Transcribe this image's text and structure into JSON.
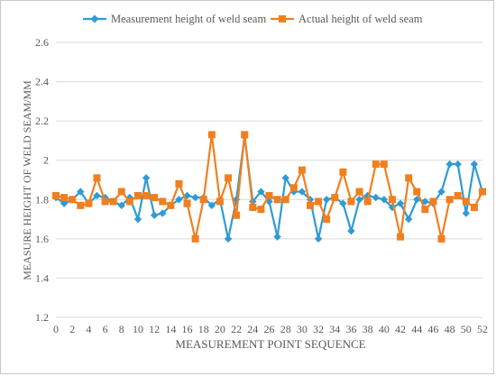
{
  "chart_data": {
    "type": "line",
    "title": "",
    "xlabel": "MEASUREMENT POINT SEQUENCE",
    "ylabel": "MEASURE HEIGHT OF WELD SEAM/MM",
    "ylim": [
      1.2,
      2.6
    ],
    "yticks": [
      "1.2",
      "1.4",
      "1.6",
      "1.8",
      "2",
      "2.2",
      "2.4",
      "2.6"
    ],
    "ytick_values": [
      1.2,
      1.4,
      1.6,
      1.8,
      2.0,
      2.2,
      2.4,
      2.6
    ],
    "xticks": [
      0,
      2,
      4,
      6,
      8,
      10,
      12,
      14,
      16,
      18,
      20,
      22,
      24,
      26,
      28,
      30,
      32,
      34,
      36,
      38,
      40,
      42,
      44,
      46,
      48,
      50,
      52
    ],
    "x": [
      0,
      1,
      2,
      3,
      4,
      5,
      6,
      7,
      8,
      9,
      10,
      11,
      12,
      13,
      14,
      15,
      16,
      17,
      18,
      19,
      20,
      21,
      22,
      23,
      24,
      25,
      26,
      27,
      28,
      29,
      30,
      31,
      32,
      33,
      34,
      35,
      36,
      37,
      38,
      39,
      40,
      41,
      42,
      43,
      44,
      45,
      46,
      47,
      48,
      49,
      50,
      51,
      52
    ],
    "grid": "horizontal",
    "legend_position": "top",
    "series": [
      {
        "name": "Measurement height of weld seam",
        "color": "#2E9BD6",
        "marker": "diamond",
        "values": [
          1.81,
          1.78,
          1.8,
          1.84,
          1.78,
          1.82,
          1.81,
          1.79,
          1.77,
          1.81,
          1.7,
          1.91,
          1.72,
          1.73,
          1.77,
          1.8,
          1.82,
          1.81,
          1.81,
          1.77,
          1.8,
          1.6,
          1.8,
          2.12,
          1.79,
          1.84,
          1.79,
          1.61,
          1.91,
          1.84,
          1.84,
          1.8,
          1.6,
          1.8,
          1.81,
          1.78,
          1.64,
          1.8,
          1.82,
          1.81,
          1.8,
          1.76,
          1.78,
          1.7,
          1.8,
          1.79,
          1.78,
          1.84,
          1.98,
          1.98,
          1.73,
          1.98,
          1.84
        ]
      },
      {
        "name": "Actual height of weld seam",
        "color": "#F07F1F",
        "marker": "square",
        "values": [
          1.82,
          1.81,
          1.8,
          1.77,
          1.78,
          1.91,
          1.79,
          1.79,
          1.84,
          1.79,
          1.82,
          1.82,
          1.81,
          1.79,
          1.77,
          1.88,
          1.78,
          1.6,
          1.8,
          2.13,
          1.79,
          1.91,
          1.72,
          2.13,
          1.76,
          1.75,
          1.82,
          1.8,
          1.8,
          1.86,
          1.95,
          1.77,
          1.79,
          1.7,
          1.81,
          1.94,
          1.79,
          1.84,
          1.79,
          1.98,
          1.98,
          1.8,
          1.61,
          1.91,
          1.84,
          1.75,
          1.79,
          1.6,
          1.8,
          1.82,
          1.79,
          1.76,
          1.84
        ]
      }
    ]
  }
}
